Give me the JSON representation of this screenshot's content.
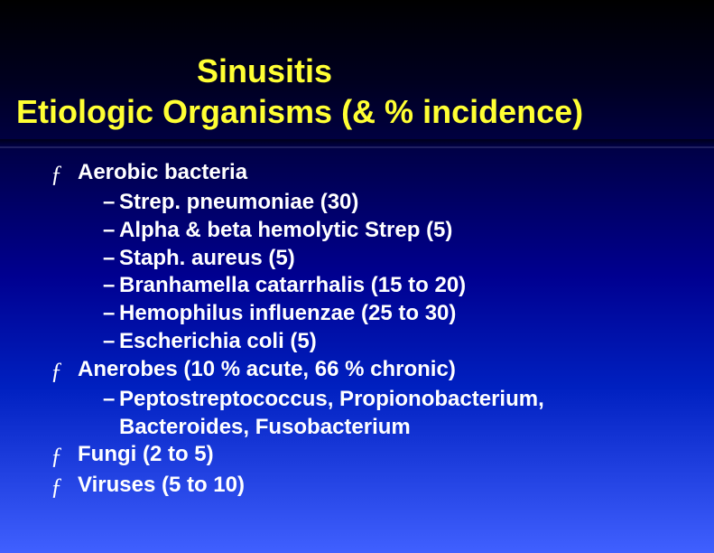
{
  "title": {
    "line1": "Sinusitis",
    "line2": "Etiologic Organisms (& % incidence)",
    "color": "#ffff33",
    "fontsize_pt": 36
  },
  "body": {
    "color": "#ffffff",
    "fontsize_pt": 24,
    "bullet_glyph": "ƒ",
    "dash_glyph": "–",
    "items": [
      {
        "text": "Aerobic bacteria",
        "sub": [
          "Strep. pneumoniae (30)",
          "Alpha & beta hemolytic Strep (5)",
          "Staph. aureus (5)",
          "Branhamella catarrhalis (15 to 20)",
          "Hemophilus influenzae (25 to 30)",
          "Escherichia coli (5)"
        ]
      },
      {
        "text": "Anerobes (10 % acute, 66 % chronic)",
        "sub_wrapped": [
          [
            "Peptostreptococcus, Propionobacterium,",
            "Bacteroides, Fusobacterium"
          ]
        ]
      },
      {
        "text": "Fungi (2 to 5)"
      },
      {
        "text": "Viruses (5 to 10)"
      }
    ]
  },
  "background": {
    "gradient_stops": [
      "#000000",
      "#000020",
      "#000050",
      "#000090",
      "#0020c0",
      "#2040e0",
      "#4060ff"
    ]
  }
}
